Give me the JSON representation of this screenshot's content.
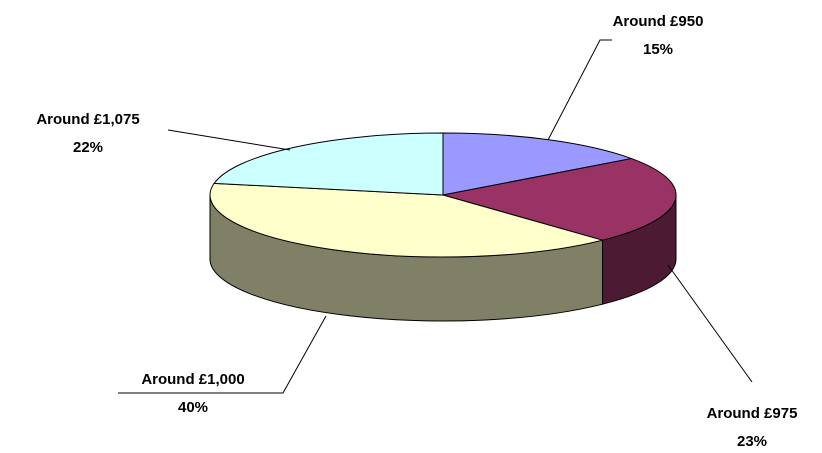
{
  "chart_data": {
    "type": "pie3d",
    "categories": [
      "Around £950",
      "Around £975",
      "Around £1,000",
      "Around £1,075"
    ],
    "values": [
      15,
      23,
      40,
      22
    ],
    "value_labels": [
      "15%",
      "23%",
      "40%",
      "22%"
    ],
    "colors": [
      "#9999ff",
      "#993366",
      "#ffffcc",
      "#ccffff"
    ]
  }
}
